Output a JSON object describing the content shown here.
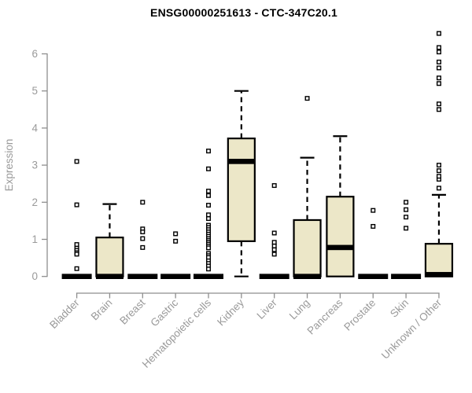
{
  "chart_data": {
    "type": "boxplot",
    "title": "ENSG00000251613 - CTC-347C20.1",
    "ylabel": "Expression",
    "xlabel": "",
    "ylim": [
      0,
      6.6
    ],
    "yticks": [
      0,
      1,
      2,
      3,
      4,
      5,
      6
    ],
    "grid": false,
    "legend": "none",
    "colors": {
      "box_fill": "#ece7c8",
      "box_stroke": "#000000",
      "median": "#000000",
      "whisker": "#000000",
      "outlier_stroke": "#000000",
      "outlier_fill": "#ffffff",
      "axis_line": "#8e8e8e",
      "tick_text": "#9a9a9a",
      "title_text": "#000000"
    },
    "categories": [
      "Bladder",
      "Brain",
      "Breast",
      "Gastric",
      "Hematopoietic cells",
      "Kidney",
      "Liver",
      "Lung",
      "Pancreas",
      "Prostate",
      "Skin",
      "Unknown / Other"
    ],
    "boxes": [
      {
        "label": "Bladder",
        "low": 0,
        "q1": 0,
        "median": 0,
        "q3": 0,
        "high": 0,
        "outliers": [
          3.1,
          1.93,
          0.86,
          0.76,
          0.7,
          0.64,
          0.6,
          0.21
        ]
      },
      {
        "label": "Brain",
        "low": 0,
        "q1": 0,
        "median": 0,
        "q3": 1.05,
        "high": 1.95,
        "outliers": []
      },
      {
        "label": "Breast",
        "low": 0,
        "q1": 0,
        "median": 0,
        "q3": 0,
        "high": 0,
        "outliers": [
          2.0,
          1.28,
          1.2,
          1.02,
          0.78
        ]
      },
      {
        "label": "Gastric",
        "low": 0,
        "q1": 0,
        "median": 0,
        "q3": 0,
        "high": 0,
        "outliers": [
          1.15,
          0.95
        ]
      },
      {
        "label": "Hematopoietic cells",
        "low": 0,
        "q1": 0,
        "median": 0,
        "q3": 0,
        "high": 0,
        "outliers": [
          3.38,
          2.9,
          2.3,
          2.18,
          1.92,
          1.66,
          1.56,
          1.38,
          1.32,
          1.26,
          1.2,
          1.14,
          1.08,
          1.02,
          0.97,
          0.92,
          0.87,
          0.82,
          0.77,
          0.62,
          0.56,
          0.51,
          0.42,
          0.35,
          0.28,
          0.2
        ]
      },
      {
        "label": "Kidney",
        "low": 0,
        "q1": 0.95,
        "median": 3.1,
        "q3": 3.72,
        "high": 5.0,
        "outliers": []
      },
      {
        "label": "Liver",
        "low": 0,
        "q1": 0,
        "median": 0,
        "q3": 0,
        "high": 0,
        "outliers": [
          2.45,
          1.17,
          0.92,
          0.82,
          0.72,
          0.6
        ]
      },
      {
        "label": "Lung",
        "low": 0,
        "q1": 0,
        "median": 0,
        "q3": 1.52,
        "high": 3.2,
        "outliers": [
          4.8
        ]
      },
      {
        "label": "Pancreas",
        "low": 0,
        "q1": 0,
        "median": 0.78,
        "q3": 2.15,
        "high": 3.78,
        "outliers": []
      },
      {
        "label": "Prostate",
        "low": 0,
        "q1": 0,
        "median": 0,
        "q3": 0,
        "high": 0,
        "outliers": [
          1.78,
          1.35
        ]
      },
      {
        "label": "Skin",
        "low": 0,
        "q1": 0,
        "median": 0,
        "q3": 0,
        "high": 0,
        "outliers": [
          2.0,
          1.8,
          1.6,
          1.3
        ]
      },
      {
        "label": "Unknown / Other",
        "low": 0,
        "q1": 0,
        "median": 0.05,
        "q3": 0.88,
        "high": 2.2,
        "outliers": [
          2.38,
          2.62,
          2.7,
          2.85,
          3.0,
          4.5,
          4.65,
          5.2,
          5.35,
          5.62,
          5.78,
          6.05,
          6.17,
          6.55
        ]
      }
    ]
  }
}
